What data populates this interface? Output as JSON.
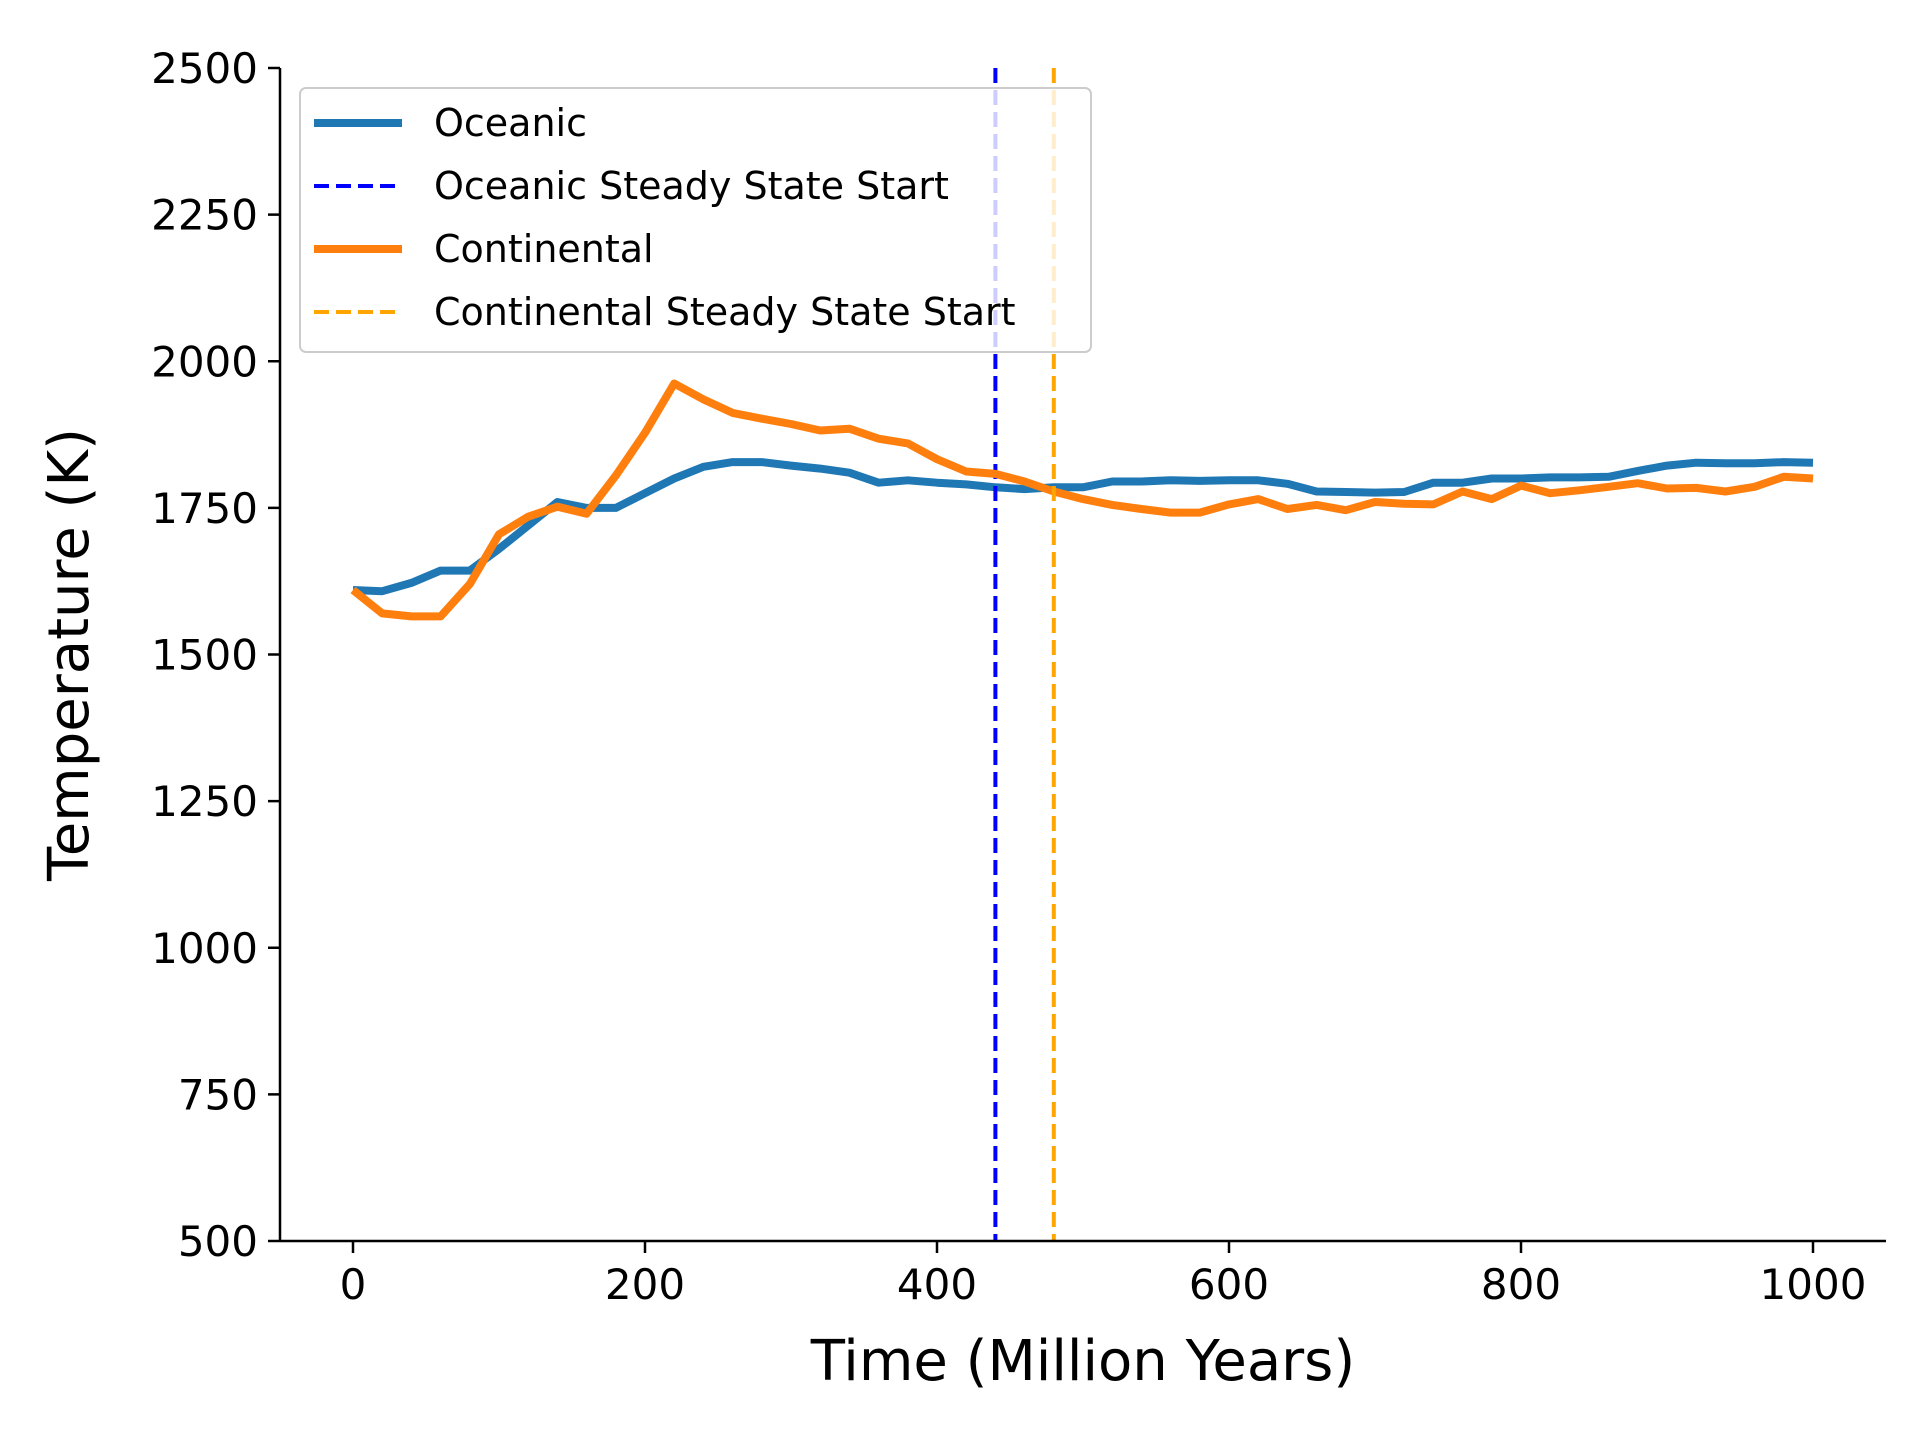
{
  "chart_data": {
    "type": "line",
    "title": "",
    "xlabel": "Time (Million Years)",
    "ylabel": "Temperature (K)",
    "xlim": [
      -50,
      1050
    ],
    "ylim": [
      500,
      2500
    ],
    "xticks": [
      0,
      200,
      400,
      600,
      800,
      1000
    ],
    "yticks": [
      500,
      750,
      1000,
      1250,
      1500,
      1750,
      2000,
      2250,
      2500
    ],
    "grid": false,
    "legend_placement": "top-left",
    "series": [
      {
        "name": "Oceanic",
        "color": "#1f77b4",
        "style": "solid",
        "x": [
          0,
          20,
          40,
          60,
          80,
          100,
          120,
          140,
          160,
          180,
          200,
          220,
          240,
          260,
          280,
          300,
          320,
          340,
          360,
          380,
          400,
          420,
          440,
          460,
          480,
          500,
          520,
          540,
          560,
          580,
          600,
          620,
          640,
          660,
          680,
          700,
          720,
          740,
          760,
          780,
          800,
          820,
          840,
          860,
          880,
          900,
          920,
          940,
          960,
          980,
          1000
        ],
        "y": [
          1610,
          1608,
          1622,
          1643,
          1643,
          1680,
          1720,
          1760,
          1750,
          1750,
          1775,
          1800,
          1820,
          1828,
          1828,
          1822,
          1817,
          1810,
          1793,
          1797,
          1793,
          1790,
          1785,
          1782,
          1785,
          1785,
          1795,
          1795,
          1797,
          1796,
          1797,
          1797,
          1791,
          1778,
          1777,
          1776,
          1777,
          1793,
          1793,
          1800,
          1800,
          1802,
          1802,
          1803,
          1813,
          1822,
          1827,
          1826,
          1826,
          1828,
          1827
        ]
      },
      {
        "name": "Oceanic Steady State Start",
        "color": "#0000ff",
        "style": "dashed",
        "vline_x": 440
      },
      {
        "name": "Continental",
        "color": "#ff7f0e",
        "style": "solid",
        "x": [
          0,
          20,
          40,
          60,
          80,
          100,
          120,
          140,
          160,
          180,
          200,
          220,
          240,
          260,
          280,
          300,
          320,
          340,
          360,
          380,
          400,
          420,
          440,
          460,
          480,
          500,
          520,
          540,
          560,
          580,
          600,
          620,
          640,
          660,
          680,
          700,
          720,
          740,
          760,
          780,
          800,
          820,
          840,
          860,
          880,
          900,
          920,
          940,
          960,
          980,
          1000
        ],
        "y": [
          1610,
          1570,
          1565,
          1565,
          1620,
          1705,
          1735,
          1752,
          1740,
          1805,
          1878,
          1962,
          1935,
          1912,
          1902,
          1893,
          1882,
          1885,
          1868,
          1860,
          1833,
          1812,
          1808,
          1795,
          1778,
          1765,
          1755,
          1748,
          1742,
          1742,
          1756,
          1765,
          1748,
          1755,
          1746,
          1760,
          1757,
          1756,
          1778,
          1765,
          1788,
          1775,
          1780,
          1786,
          1792,
          1783,
          1784,
          1778,
          1786,
          1803,
          1800
        ]
      },
      {
        "name": "Continental Steady State Start",
        "color": "#ffa500",
        "style": "dashed",
        "vline_x": 480
      }
    ]
  }
}
